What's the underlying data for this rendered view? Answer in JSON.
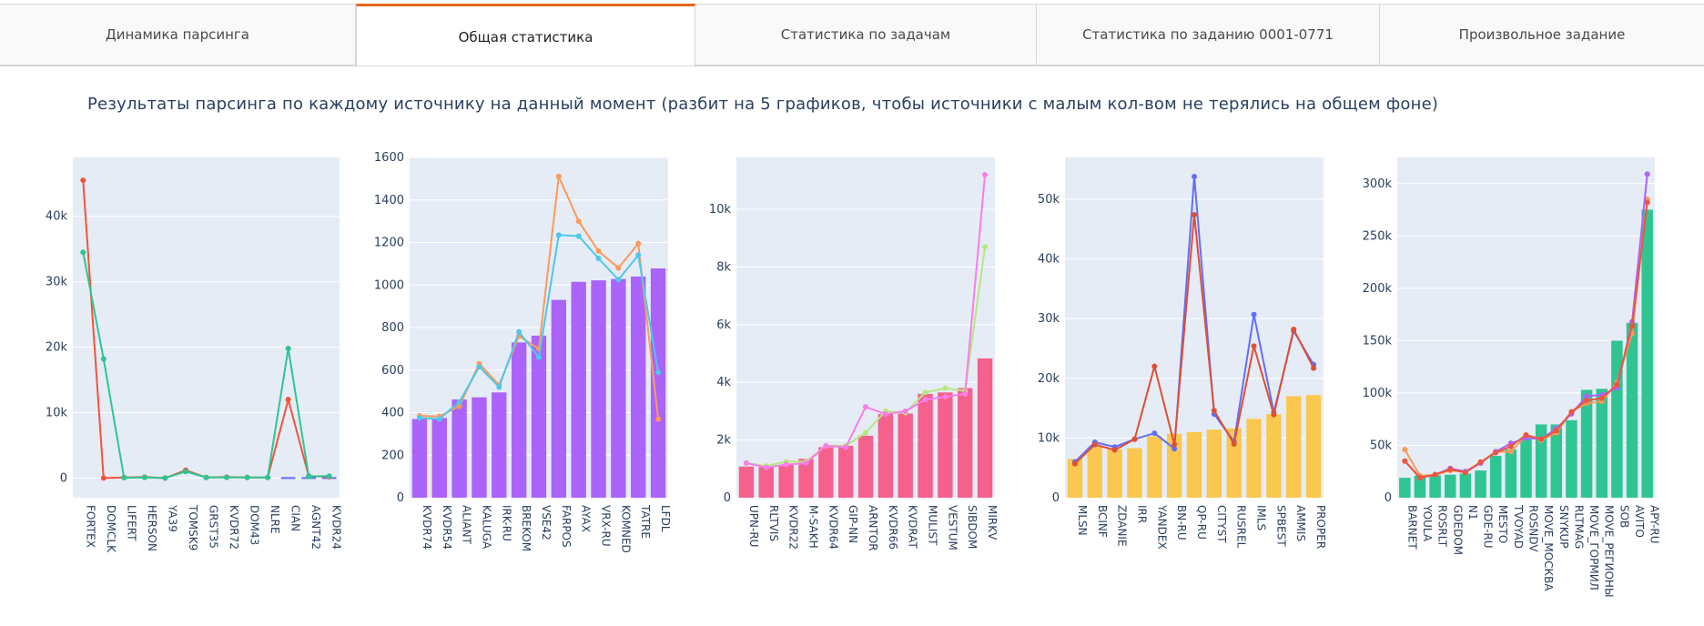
{
  "tabs": [
    {
      "label": "Динамика парсинга",
      "active": false
    },
    {
      "label": "Общая статистика",
      "active": true
    },
    {
      "label": "Статистика по задачам",
      "active": false
    },
    {
      "label": "Статистика по заданию 0001-0771",
      "active": false
    },
    {
      "label": "Произвольное задание",
      "active": false
    }
  ],
  "accent_color": "#e8661c",
  "headline": "Результаты парсинга по каждому источнику на данный момент (разбит на 5 графиков, чтобы источники с малым кол-вом не  терялись на общем фоне)",
  "chart_data": [
    {
      "type": "bar",
      "categories": [
        "FORTEX",
        "DOMCLK",
        "LIFERT",
        "HERSON",
        "YA39",
        "TOMSK9",
        "GRST35",
        "KVDR72",
        "DOM43",
        "NLRE",
        "CIAN",
        "AGNT42",
        "KVDR24"
      ],
      "bar_color": "#636efa",
      "values": [
        0,
        0,
        0,
        0,
        0,
        0,
        0,
        0,
        0,
        0,
        200,
        150,
        180
      ],
      "series": [
        {
          "values": [
            45500,
            0,
            100,
            150,
            0,
            1200,
            100,
            150,
            100,
            100,
            12000,
            300,
            200
          ],
          "color": "#ef553b"
        },
        {
          "values": [
            34500,
            18200,
            50,
            100,
            0,
            1000,
            100,
            100,
            100,
            100,
            19800,
            250,
            300
          ],
          "color": "#2fc592"
        }
      ],
      "ylim": [
        -3000,
        49000
      ],
      "yticks": [
        0,
        10000,
        20000,
        30000,
        40000
      ],
      "ytick_labels": [
        "0",
        "10k",
        "20k",
        "30k",
        "40k"
      ],
      "grid": true
    },
    {
      "type": "bar",
      "categories": [
        "KVDR74",
        "KVDR54",
        "ALIANT",
        "KALUGA",
        "IRK-RU",
        "BREKOM",
        "VSE42",
        "FARPOS",
        "AYAX",
        "VRX-RU",
        "KOMNED",
        "TATRE",
        "LFDL"
      ],
      "bar_color": "#ab63fa",
      "values": [
        370,
        375,
        462,
        472,
        495,
        730,
        762,
        930,
        1015,
        1022,
        1028,
        1040,
        1078
      ],
      "series": [
        {
          "values": [
            385,
            382,
            430,
            630,
            530,
            760,
            700,
            1510,
            1300,
            1160,
            1080,
            1195,
            370
          ],
          "color": "#fb9a5a"
        },
        {
          "values": [
            375,
            370,
            450,
            615,
            520,
            780,
            660,
            1235,
            1230,
            1125,
            1025,
            1140,
            590
          ],
          "color": "#4ec7ea"
        }
      ],
      "ylim": [
        0,
        1600
      ],
      "yticks": [
        0,
        200,
        400,
        600,
        800,
        1000,
        1200,
        1400,
        1600
      ],
      "ytick_labels": [
        "0",
        "200",
        "400",
        "600",
        "800",
        "1000",
        "1200",
        "1400",
        "1600"
      ],
      "grid": true
    },
    {
      "type": "bar",
      "categories": [
        "UPN-RU",
        "RLTVIS",
        "KVDR22",
        "M-SAKH",
        "KVDR64",
        "GIP-NN",
        "ARNTOR",
        "KVDR66",
        "KVDRAT",
        "MULIST",
        "VESTUM",
        "SIBDOM",
        "MIRKV"
      ],
      "bar_color": "#f5608c",
      "values": [
        1080,
        1100,
        1150,
        1350,
        1750,
        1800,
        2150,
        2900,
        2920,
        3600,
        3650,
        3800,
        4830
      ],
      "series": [
        {
          "values": [
            1200,
            1100,
            1250,
            1250,
            1800,
            1800,
            2250,
            3000,
            2950,
            3650,
            3800,
            3700,
            8700
          ],
          "color": "#b6e880"
        },
        {
          "values": [
            1200,
            1050,
            1150,
            1200,
            1800,
            1750,
            3150,
            2900,
            3000,
            3400,
            3500,
            3600,
            11200
          ],
          "color": "#f77ee9"
        }
      ],
      "ylim": [
        0,
        11800
      ],
      "yticks": [
        0,
        2000,
        4000,
        6000,
        8000,
        10000
      ],
      "ytick_labels": [
        "0",
        "2k",
        "4k",
        "6k",
        "8k",
        "10k"
      ],
      "grid": true
    },
    {
      "type": "bar",
      "categories": [
        "MLSN",
        "BCINF",
        "ZDANIE",
        "IRR",
        "YANDEX",
        "BN-RU",
        "QP-RU",
        "CITYST",
        "RUSREL",
        "IMLS",
        "SPBEST",
        "AMMIS",
        "PROPER"
      ],
      "bar_color": "#fac74f",
      "values": [
        6500,
        8500,
        8100,
        8300,
        10300,
        10700,
        11000,
        11400,
        11600,
        13200,
        14000,
        17000,
        17200
      ],
      "series": [
        {
          "values": [
            6000,
            9300,
            8500,
            9800,
            10800,
            8200,
            53800,
            14000,
            9400,
            30700,
            14300,
            27900,
            22300
          ],
          "color": "#636efa"
        },
        {
          "values": [
            5700,
            8900,
            8000,
            9800,
            22000,
            8900,
            47400,
            14600,
            9000,
            25400,
            13900,
            28200,
            21700
          ],
          "color": "#dd5033"
        }
      ],
      "ylim": [
        0,
        57000
      ],
      "yticks": [
        0,
        10000,
        20000,
        30000,
        40000,
        50000
      ],
      "ytick_labels": [
        "0",
        "10k",
        "20k",
        "30k",
        "40k",
        "50k"
      ],
      "grid": true
    },
    {
      "type": "bar",
      "categories": [
        "BARNET",
        "YOULA",
        "ROSRLT",
        "GDEDOM",
        "N1",
        "GDE-RU",
        "MESTO",
        "TVOYAD",
        "ROSNDV",
        "MOVE_MOSKVA",
        "SNYKUP",
        "RLTMAG",
        "MOVE_GORMIL",
        "MOVE_REGIONY",
        "SOB",
        "AVITO",
        "APY-RU"
      ],
      "categories_display": [
        "BARNET",
        "YOULA",
        "ROSRLT",
        "GDEDOM",
        "N1",
        "GDE-RU",
        "MESTO",
        "TVOYAD",
        "ROSNDV",
        "MOVE_МОСКВА",
        "SNYKUP",
        "RLTMAG",
        "MOVE_ГОРМИЛ",
        "MOVE_РЕГИОНЫ",
        "SOB",
        "AVITO",
        "APY-RU"
      ],
      "bar_color": "#2fc592",
      "values": [
        19000,
        21000,
        21500,
        22000,
        23000,
        26000,
        40000,
        46000,
        56000,
        70000,
        70000,
        74000,
        103000,
        104000,
        150000,
        167000,
        275000
      ],
      "series": [
        {
          "values": [
            46000,
            21000,
            22000,
            26000,
            25000,
            34000,
            44000,
            44000,
            59000,
            55000,
            62000,
            82000,
            90000,
            92000,
            110000,
            157000,
            285000
          ],
          "color": "#fb9a5a"
        },
        {
          "values": [
            35000,
            19000,
            22000,
            28000,
            25000,
            33000,
            44000,
            52000,
            57000,
            56000,
            66000,
            80000,
            97000,
            98000,
            105000,
            168000,
            309000
          ],
          "color": "#ab63fa"
        },
        {
          "values": [
            35000,
            19000,
            22000,
            27000,
            24000,
            34000,
            43000,
            49000,
            60000,
            56000,
            64000,
            82000,
            93000,
            95000,
            108000,
            164000,
            282000
          ],
          "color": "#ef553b"
        }
      ],
      "ylim": [
        0,
        325000
      ],
      "yticks": [
        0,
        50000,
        100000,
        150000,
        200000,
        250000,
        300000
      ],
      "ytick_labels": [
        "0",
        "50k",
        "100k",
        "150k",
        "200k",
        "250k",
        "300k"
      ],
      "grid": true
    }
  ]
}
